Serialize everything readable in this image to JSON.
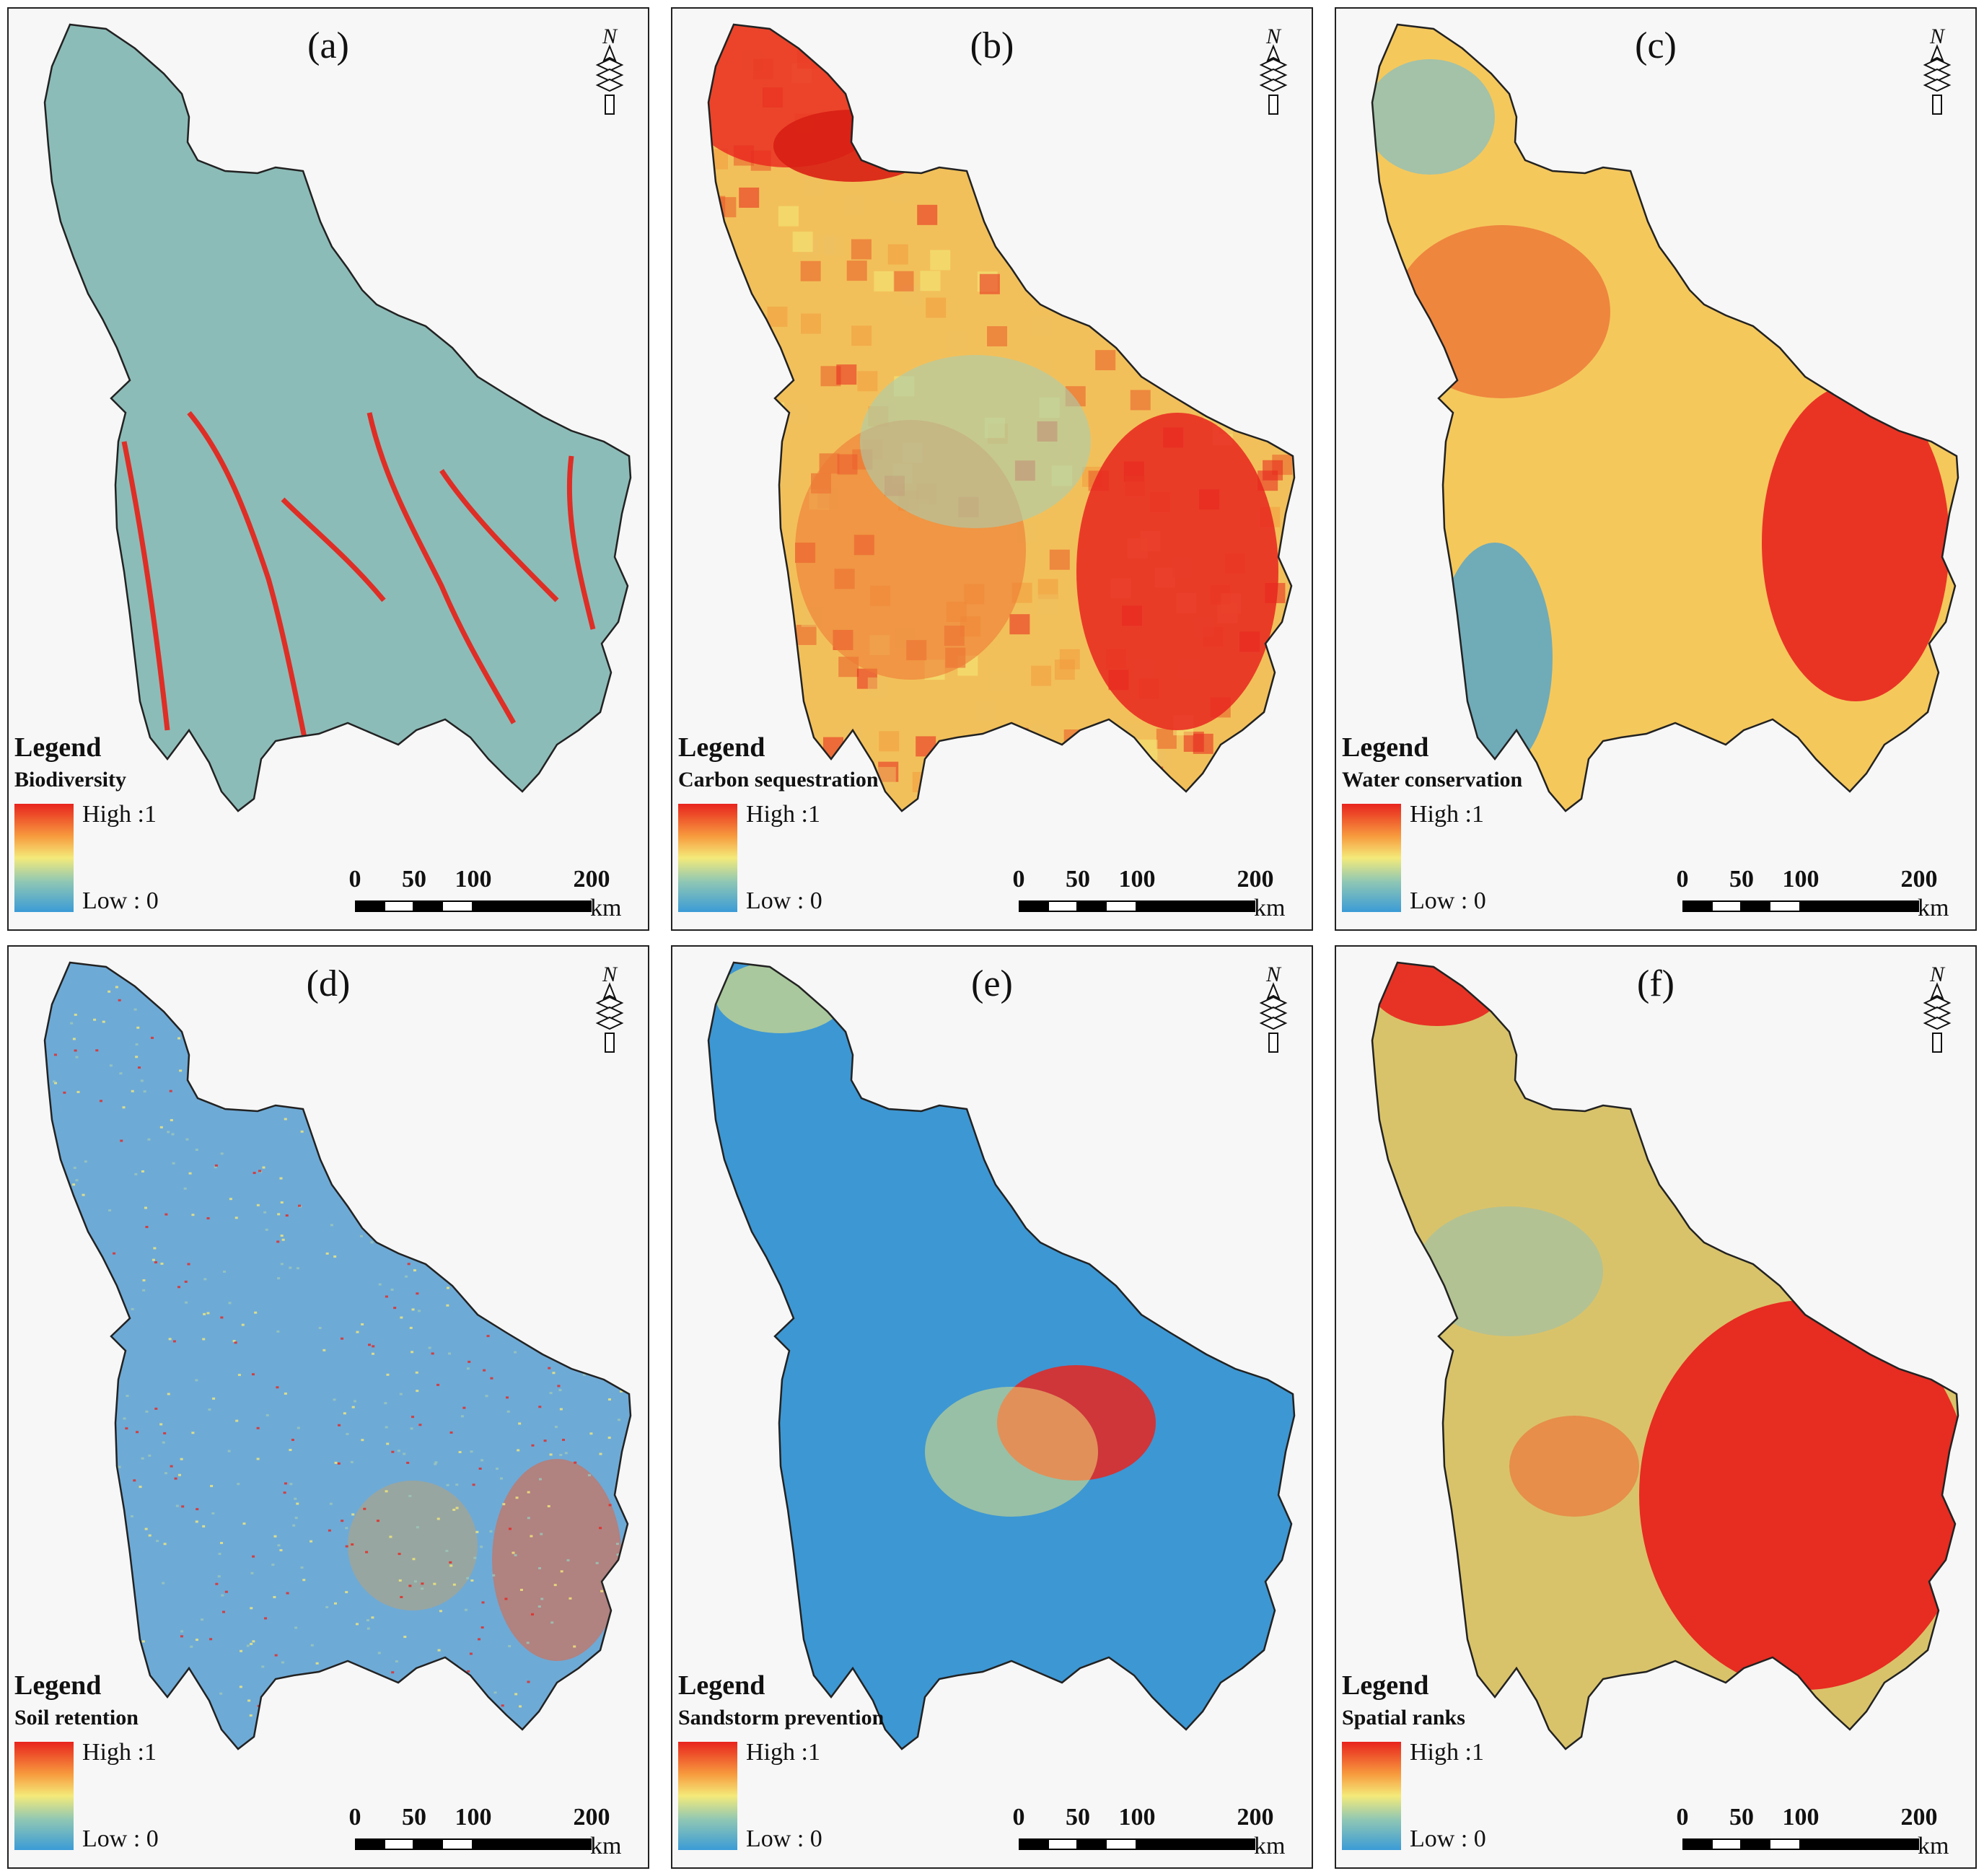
{
  "panels": [
    {
      "id": "a",
      "label": "(a)",
      "layer": "Biodiversity",
      "theme": "bio"
    },
    {
      "id": "b",
      "label": "(b)",
      "layer": "Carbon sequestration",
      "theme": "carbon"
    },
    {
      "id": "c",
      "label": "(c)",
      "layer": "Water conservation",
      "theme": "water"
    },
    {
      "id": "d",
      "label": "(d)",
      "layer": "Soil retention",
      "theme": "soil"
    },
    {
      "id": "e",
      "label": "(e)",
      "layer": "Sandstorm prevention",
      "theme": "sand"
    },
    {
      "id": "f",
      "label": "(f)",
      "layer": "Spatial ranks",
      "theme": "rank"
    }
  ],
  "legend": {
    "title": "Legend",
    "high": "High :1",
    "low": "Low : 0"
  },
  "scale": {
    "ticks": [
      "0",
      "50",
      "100",
      "200"
    ],
    "unit": "km"
  },
  "north_label": "N",
  "colors": {
    "high": "#e8241e",
    "mid": "#f4ea7a",
    "low": "#3b9bd6"
  }
}
